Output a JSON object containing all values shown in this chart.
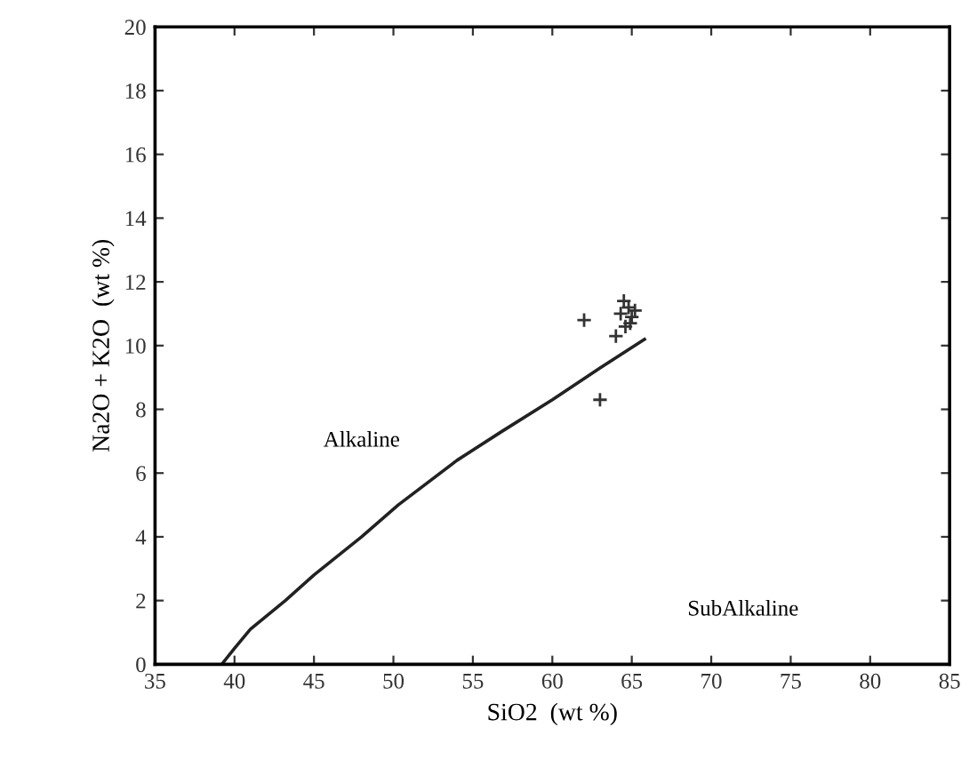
{
  "chart_data": {
    "type": "scatter",
    "xlabel": "SiO2  (wt %)",
    "ylabel": "Na2O + K2O  (wt %)",
    "xlim": [
      35,
      85
    ],
    "xticks": [
      35,
      40,
      45,
      50,
      55,
      60,
      65,
      70,
      75,
      80,
      85
    ],
    "ylim": [
      0,
      20
    ],
    "yticks": [
      0,
      2,
      4,
      6,
      8,
      10,
      12,
      14,
      16,
      18,
      20
    ],
    "grid": false,
    "legend": false,
    "series": [
      {
        "type": "line",
        "color": "#222222",
        "marker": "none",
        "line_style": "solid",
        "x": [
          39.2,
          40,
          41,
          43.2,
          45,
          48,
          50.3,
          54,
          56.8,
          60,
          63,
          65.8
        ],
        "values": [
          0,
          0.5,
          1.1,
          2,
          2.8,
          4,
          5,
          6.4,
          7.3,
          8.3,
          9.3,
          10.2
        ]
      },
      {
        "color": "#333333",
        "marker": "cross",
        "x": [
          62,
          63,
          64.5,
          64.8,
          64.3,
          65,
          64.6,
          64.0,
          65.2,
          64.9
        ],
        "values": [
          10.8,
          8.3,
          11.4,
          11.2,
          11.0,
          10.9,
          10.6,
          10.3,
          11.1,
          10.7
        ]
      }
    ],
    "annotations": [
      "Alkaline",
      "SubAlkaline"
    ]
  }
}
